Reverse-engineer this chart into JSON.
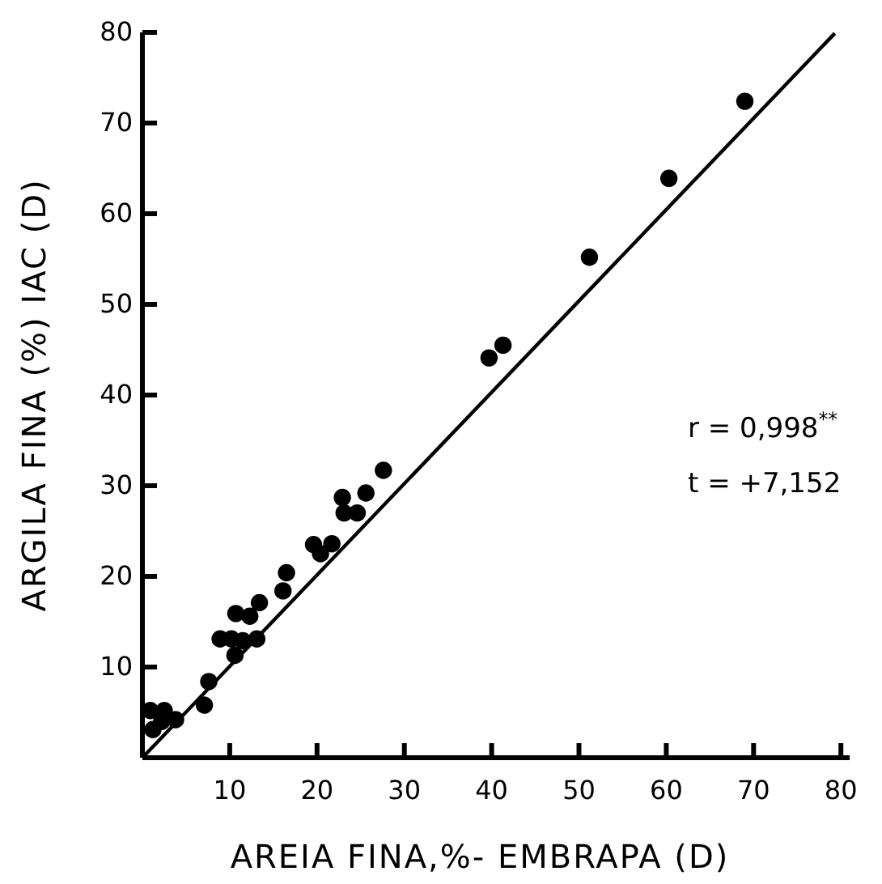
{
  "chart_data": {
    "type": "scatter",
    "xlabel": "AREIA FINA,%- EMBRAPA (D)",
    "ylabel": "ARGILA FINA (%) IAC (D)",
    "xlim": [
      0,
      81
    ],
    "ylim": [
      0,
      80
    ],
    "xticks": [
      10,
      20,
      30,
      40,
      50,
      60,
      70,
      80
    ],
    "yticks": [
      10,
      20,
      30,
      40,
      50,
      60,
      70,
      80
    ],
    "grid": false,
    "annotations": [
      "r = 0,998$^{**}$",
      "t = +7,152"
    ],
    "series": [
      {
        "color": "#000000",
        "marker": "circle",
        "x": [
          69.0,
          60.3,
          51.2,
          39.7,
          41.3,
          27.6,
          25.6,
          22.9,
          23.1,
          24.6,
          21.7,
          19.6,
          20.4,
          16.5,
          16.1,
          13.4,
          12.3,
          10.7,
          8.9,
          10.2,
          11.5,
          13.1,
          10.6,
          7.6,
          7.1,
          0.9,
          2.5,
          1.2,
          2.2,
          3.8
        ],
        "values": [
          72.4,
          63.9,
          55.2,
          44.1,
          45.5,
          31.7,
          29.2,
          28.7,
          27.0,
          27.0,
          23.6,
          23.5,
          22.5,
          20.4,
          18.4,
          17.1,
          15.6,
          15.9,
          13.1,
          13.1,
          12.9,
          13.1,
          11.3,
          8.4,
          5.8,
          5.2,
          5.2,
          3.1,
          4.0,
          4.2
        ]
      },
      {
        "type": "line",
        "color": "#000000",
        "marker": "none",
        "line_style": "solid",
        "x": [
          0,
          79.3
        ],
        "values": [
          0,
          79.9
        ]
      }
    ]
  }
}
